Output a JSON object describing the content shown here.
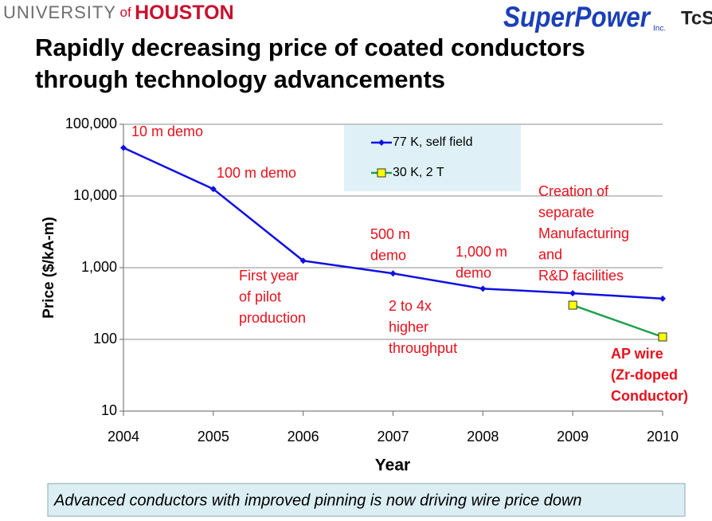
{
  "header": {
    "university": [
      "UNIVERSITY",
      "of",
      "HOUSTON"
    ],
    "logos": [
      "SuperPower",
      "Inc.",
      "TcSU"
    ]
  },
  "title": [
    "Rapidly decreasing price of coated conductors",
    "through technology advancements"
  ],
  "chart_data": {
    "type": "line",
    "x": [
      2004,
      2005,
      2006,
      2007,
      2008,
      2009,
      2010
    ],
    "xlim": [
      2004,
      2010
    ],
    "xticks": [
      2004,
      2005,
      2006,
      2007,
      2008,
      2009,
      2010
    ],
    "x_label": "Year",
    "y_label": "Price ($/kA-m)",
    "y_scale": "log",
    "ylim": [
      10,
      100000
    ],
    "yticks": [
      10,
      100,
      {
        "value": 1000,
        "label": "1,000"
      },
      {
        "value": 10000,
        "label": "10,000"
      },
      {
        "value": 100000,
        "label": "100,000"
      }
    ],
    "grid": true,
    "series": [
      {
        "name": "77 K, self field",
        "color": "#1010e0",
        "marker": "diamond",
        "marker_color": "#1010e0",
        "values": [
          47000,
          12500,
          1250,
          830,
          510,
          440,
          370
        ]
      },
      {
        "name": "30 K, 2 T",
        "color": "#1ea04a",
        "marker": "square",
        "marker_color": "#ffff00",
        "values": [
          null,
          null,
          null,
          null,
          null,
          300,
          108
        ]
      }
    ],
    "annotations": [
      [
        "10 m demo"
      ],
      [
        "100 m demo"
      ],
      [
        "First year",
        "of pilot",
        "production"
      ],
      [
        "500 m",
        "demo"
      ],
      [
        "2 to 4x",
        "higher",
        "throughput"
      ],
      [
        "1,000 m",
        "demo"
      ],
      [
        "Creation of",
        "separate",
        "Manufacturing",
        "and",
        "R&D facilities"
      ],
      [
        "AP wire",
        "(Zr-doped",
        "Conductor)"
      ]
    ]
  },
  "footer": "Advanced conductors with improved pinning is now driving wire price down"
}
